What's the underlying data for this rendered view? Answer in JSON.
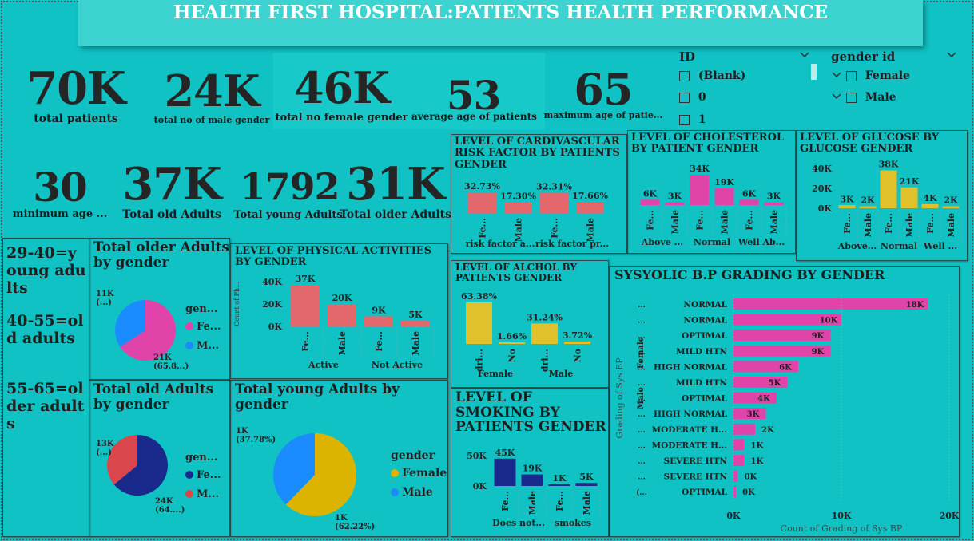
{
  "title": "HEALTH FIRST HOSPITAL:PATIENTS HEALTH PERFORMANCE",
  "kpis": [
    {
      "value": "70K",
      "label": "total patients"
    },
    {
      "value": "24K",
      "label": "total no of male gender"
    },
    {
      "value": "46K",
      "label": "total no female gender"
    },
    {
      "value": "53",
      "label": "average age of patients"
    },
    {
      "value": "65",
      "label": "maximum age of patie..."
    },
    {
      "value": "30",
      "label": "minimum age ..."
    },
    {
      "value": "37K",
      "label": "Total old Adults"
    },
    {
      "value": "1792",
      "label": "Total young Adults"
    },
    {
      "value": "31K",
      "label": "Total older Adults"
    }
  ],
  "slicers": {
    "id": {
      "title": "ID",
      "items": [
        "(Blank)",
        "0",
        "1"
      ],
      "chevron": "chevron-down-icon"
    },
    "gender": {
      "title": "gender id",
      "items": [
        "Female",
        "Male"
      ],
      "chevron": "chevron-down-icon"
    }
  },
  "age_legend": {
    "young": "29-40=young adults",
    "old": "40-55=old adults",
    "older": "55-65=older adults"
  },
  "colors": {
    "background": "#10c2c4",
    "pink": "#e044a8",
    "blue": "#1a8cff",
    "navy": "#1a2a8c",
    "red_pie": "#d9464b",
    "salmon": "#e2686d",
    "yellow": "#e0c02b",
    "gold": "#dcb400"
  },
  "chart_data": [
    {
      "id": "cardio",
      "type": "bar",
      "title": "LEVEL OF CARDIVASCULAR RISK FACTOR BY PATIENTS GENDER",
      "groups": [
        "risk factor a...",
        "risk factor pr..."
      ],
      "categories": [
        "Fe...",
        "Male",
        "Fe...",
        "Male"
      ],
      "values": [
        32.73,
        17.3,
        32.31,
        17.66
      ],
      "data_labels": [
        "32.73%",
        "17.30%",
        "32.31%",
        "17.66%"
      ]
    },
    {
      "id": "cholesterol",
      "type": "bar",
      "title": "LEVEL OF CHOLESTEROL BY PATIENT GENDER",
      "groups": [
        "Above ...",
        "Normal",
        "Well Ab..."
      ],
      "categories": [
        "Fe...",
        "Male",
        "Fe...",
        "Male",
        "Fe...",
        "Male"
      ],
      "values": [
        6000,
        3000,
        34000,
        19000,
        6000,
        3000
      ],
      "data_labels": [
        "6K",
        "3K",
        "34K",
        "19K",
        "6K",
        "3K"
      ],
      "colors": [
        "pink",
        "pink",
        "pink",
        "pink",
        "pink",
        "pink"
      ]
    },
    {
      "id": "glucose",
      "type": "bar",
      "title": "LEVEL OF GLUCOSE BY GLUCOSE GENDER",
      "groups": [
        "Above...",
        "Normal",
        "Well ..."
      ],
      "categories": [
        "Fe...",
        "Male",
        "Fe...",
        "Male",
        "Fe...",
        "Male"
      ],
      "values": [
        3000,
        2000,
        38000,
        21000,
        4000,
        2000
      ],
      "data_labels": [
        "3K",
        "2K",
        "38K",
        "21K",
        "4K",
        "2K"
      ],
      "yticks": [
        "40K",
        "20K",
        "0K"
      ],
      "ylim": [
        0,
        40000
      ]
    },
    {
      "id": "physical",
      "type": "bar",
      "title": "LEVEL OF PHYSICAL ACTIVITIES BY GENDER",
      "ylabel": "Count of Ph...",
      "groups": [
        "Active",
        "Not Active"
      ],
      "categories": [
        "Fe...",
        "Male",
        "Fe...",
        "Male"
      ],
      "values": [
        37000,
        20000,
        9000,
        5000
      ],
      "data_labels": [
        "37K",
        "20K",
        "9K",
        "5K"
      ],
      "yticks": [
        "40K",
        "20K",
        "0K"
      ],
      "ylim": [
        0,
        40000
      ]
    },
    {
      "id": "alcohol",
      "type": "bar",
      "title": "LEVEL OF ALCHOL BY PATIENTS GENDER",
      "groups": [
        "Female",
        "Male"
      ],
      "categories": [
        "dri...",
        "No",
        "dri...",
        "No"
      ],
      "values": [
        63.38,
        1.66,
        31.24,
        3.72
      ],
      "data_labels": [
        "63.38%",
        "1.66%",
        "31.24%",
        "3.72%"
      ]
    },
    {
      "id": "smoking",
      "type": "bar",
      "title": "LEVEL OF SMOKING BY PATIENTS GENDER",
      "groups": [
        "Does not...",
        "smokes"
      ],
      "categories": [
        "Fe...",
        "Male",
        "Fe...",
        "Male"
      ],
      "values": [
        45000,
        19000,
        1000,
        5000
      ],
      "data_labels": [
        "45K",
        "19K",
        "1K",
        "5K"
      ],
      "yticks": [
        "50K",
        "0K"
      ],
      "ylim": [
        0,
        50000
      ]
    },
    {
      "id": "sysbp",
      "type": "bar",
      "orientation": "horizontal",
      "title": "SYSYOLIC B.P GRADING BY GENDER",
      "ylabel": "Grading of Sys BP",
      "xlabel": "Count of Grading of Sys BP",
      "xticks": [
        "0K",
        "10K",
        "20K"
      ],
      "xlim": [
        0,
        20000
      ],
      "gender_labels": [
        "Female",
        "Male"
      ],
      "rows": [
        {
          "gender": "...",
          "label": "NORMAL",
          "value": 18000,
          "data_label": "18K"
        },
        {
          "gender": "...",
          "label": "NORMAL",
          "value": 10000,
          "data_label": "10K"
        },
        {
          "gender": "...",
          "label": "OPTIMAL",
          "value": 9000,
          "data_label": "9K"
        },
        {
          "gender": "...",
          "label": "MILD HTN",
          "value": 9000,
          "data_label": "9K"
        },
        {
          "gender": "...",
          "label": "HIGH NORMAL",
          "value": 6000,
          "data_label": "6K"
        },
        {
          "gender": "...",
          "label": "MILD HTN",
          "value": 5000,
          "data_label": "5K"
        },
        {
          "gender": "...",
          "label": "OPTIMAL",
          "value": 4000,
          "data_label": "4K"
        },
        {
          "gender": "...",
          "label": "HIGH NORMAL",
          "value": 3000,
          "data_label": "3K"
        },
        {
          "gender": "...",
          "label": "MODERATE H...",
          "value": 2000,
          "data_label": "2K"
        },
        {
          "gender": "...",
          "label": "MODERATE H...",
          "value": 1000,
          "data_label": "1K"
        },
        {
          "gender": "...",
          "label": "SEVERE HTN",
          "value": 1000,
          "data_label": "1K"
        },
        {
          "gender": "...",
          "label": "SEVERE HTN",
          "value": 400,
          "data_label": "0K"
        },
        {
          "gender": "(...",
          "label": "OPTIMAL",
          "value": 100,
          "data_label": "0K"
        }
      ]
    },
    {
      "id": "pie_older",
      "type": "pie",
      "title": "Total older Adults by gender",
      "legend_title": "gen...",
      "legend": [
        "Fe...",
        "M..."
      ],
      "slices": [
        {
          "name": "Fe...",
          "value": 65.8,
          "color": "pink",
          "label_a": "21K",
          "label_b": "(65.8...)"
        },
        {
          "name": "M...",
          "value": 34.2,
          "color": "blue",
          "label_a": "11K",
          "label_b": "(...)"
        }
      ]
    },
    {
      "id": "pie_old",
      "type": "pie",
      "title": "Total old Adults by gender",
      "legend_title": "gen...",
      "legend": [
        "Fe...",
        "M..."
      ],
      "slices": [
        {
          "name": "Fe...",
          "value": 64.0,
          "color": "navy",
          "label_a": "24K",
          "label_b": "(64....)"
        },
        {
          "name": "M...",
          "value": 36.0,
          "color": "red_pie",
          "label_a": "13K",
          "label_b": "(...)"
        }
      ]
    },
    {
      "id": "pie_young",
      "type": "pie",
      "title": "Total young Adults by gender",
      "legend_title": "gender",
      "legend": [
        "Female",
        "Male"
      ],
      "slices": [
        {
          "name": "Female",
          "value": 62.22,
          "color": "gold",
          "label_a": "1K",
          "label_b": "(62.22%)"
        },
        {
          "name": "Male",
          "value": 37.78,
          "color": "blue",
          "label_a": "1K",
          "label_b": "(37.78%)"
        }
      ]
    }
  ]
}
